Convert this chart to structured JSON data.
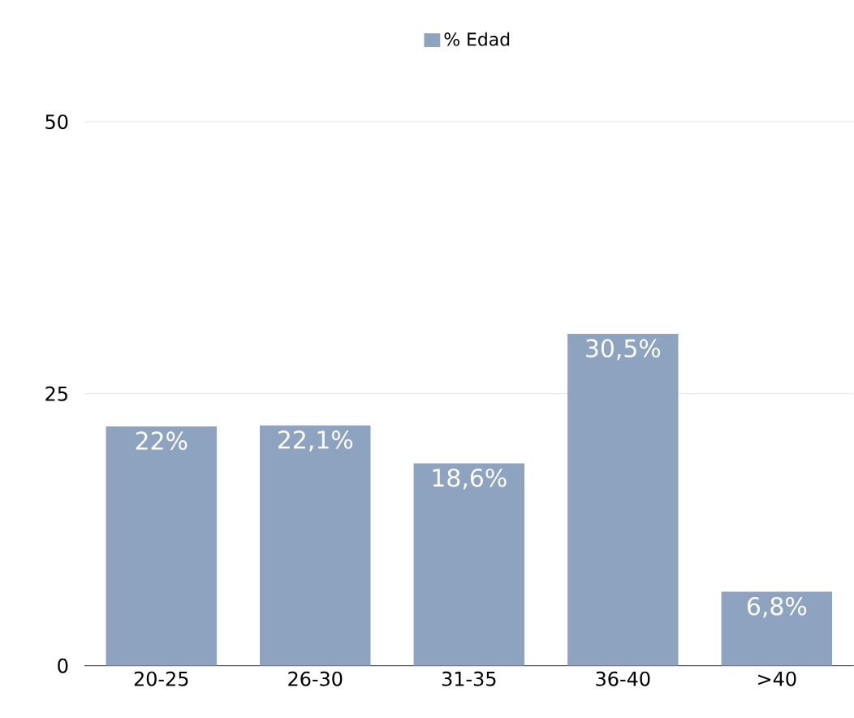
{
  "chart_data": {
    "type": "bar",
    "categories": [
      "20-25",
      "26-30",
      "31-35",
      "36-40",
      ">40"
    ],
    "series": [
      {
        "name": "% Edad",
        "color": "#8ea3bf",
        "values": [
          22,
          22.1,
          18.6,
          30.5,
          6.8
        ],
        "value_labels": [
          "22%",
          "22,1%",
          "18,6%",
          "30,5%",
          "6,8%"
        ]
      }
    ],
    "ylim": [
      0,
      50
    ],
    "yticks": [
      0,
      25,
      50
    ],
    "grid": "y",
    "legend": "top"
  }
}
